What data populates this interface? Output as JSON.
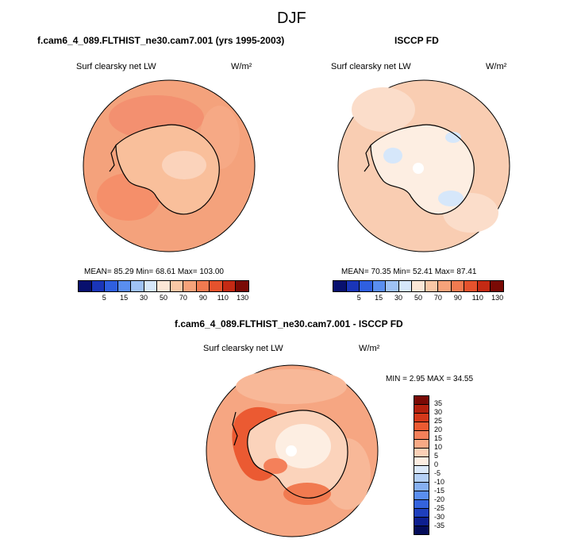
{
  "figure": {
    "title": "DJF",
    "panel_left_title": "f.cam6_4_089.FLTHIST_ne30.cam7.001 (yrs 1995-2003)",
    "panel_right_title": "ISCCP FD",
    "diff_title": "f.cam6_4_089.FLTHIST_ne30.cam7.001 - ISCCP FD",
    "variable": "Surf clearsky net LW",
    "units": "W/m²"
  },
  "panel_left": {
    "stats": "MEAN=  85.29  Min=  68.61  Max= 103.00",
    "colorbar_ticks": [
      "5",
      "15",
      "30",
      "50",
      "70",
      "90",
      "110",
      "130"
    ]
  },
  "panel_right": {
    "stats": "MEAN=  70.35  Min=  52.41  Max=  87.41",
    "colorbar_ticks": [
      "5",
      "15",
      "30",
      "50",
      "70",
      "90",
      "110",
      "130"
    ]
  },
  "panel_diff": {
    "stats": "MIN =   2.95 MAX =  34.55",
    "colorbar_ticks": [
      "35",
      "30",
      "25",
      "20",
      "15",
      "10",
      "5",
      "0",
      "-5",
      "-10",
      "-15",
      "-20",
      "-25",
      "-30",
      "-35"
    ]
  },
  "colors": {
    "abs_scale": [
      "#08106e",
      "#1a35b8",
      "#2f5fe0",
      "#5a8ef0",
      "#9fc2f5",
      "#d6e7fa",
      "#fbe6d6",
      "#f9c7a6",
      "#f6a27a",
      "#f17a50",
      "#e5522d",
      "#c42a14",
      "#7a0a05"
    ],
    "diff_scale": [
      "#7a0a05",
      "#b3200d",
      "#d4381a",
      "#eb5a32",
      "#f4805a",
      "#f8a985",
      "#fbd0b6",
      "#fdeee2",
      "#dbe9fa",
      "#b4d0f6",
      "#86b0f1",
      "#5a8ef0",
      "#3463dd",
      "#1e3fbd",
      "#0d1f8f",
      "#040c5a"
    ]
  }
}
